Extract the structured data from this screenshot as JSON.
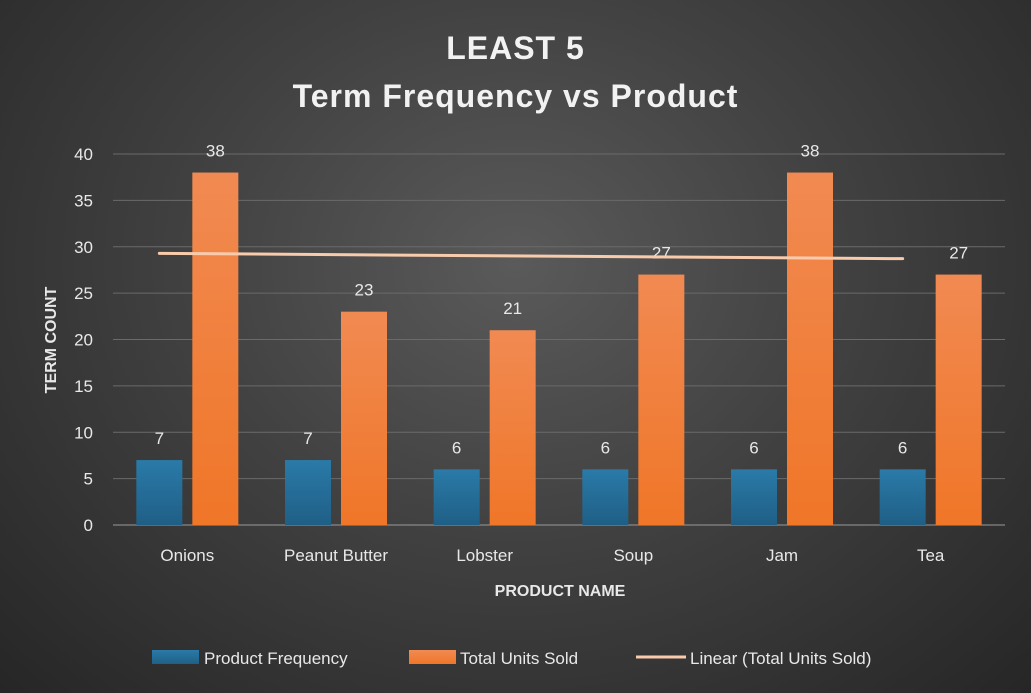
{
  "colors": {
    "product_frequency": "#1f5f86",
    "total_units_sold": "#f07628",
    "trendline": "#f8cbad",
    "gridline": "#6a6a6a",
    "text": "#e8e8e8"
  },
  "chart_data": {
    "type": "bar",
    "title": "LEAST 5",
    "subtitle": "Term Frequency vs Product",
    "xlabel": "PRODUCT NAME",
    "ylabel": "TERM COUNT",
    "ylim": [
      0,
      40
    ],
    "yticks": [
      0,
      5,
      10,
      15,
      20,
      25,
      30,
      35,
      40
    ],
    "grid": true,
    "legend_position": "bottom",
    "categories": [
      "Onions",
      "Peanut Butter",
      "Lobster",
      "Soup",
      "Jam",
      "Tea"
    ],
    "series": [
      {
        "name": "Product Frequency",
        "values": [
          7,
          7,
          6,
          6,
          6,
          6
        ]
      },
      {
        "name": "Total Units Sold",
        "values": [
          38,
          23,
          21,
          27,
          38,
          27
        ]
      }
    ],
    "trendline": {
      "name": "Linear (Total Units Sold)",
      "type": "linear",
      "series": "Total Units Sold"
    }
  }
}
